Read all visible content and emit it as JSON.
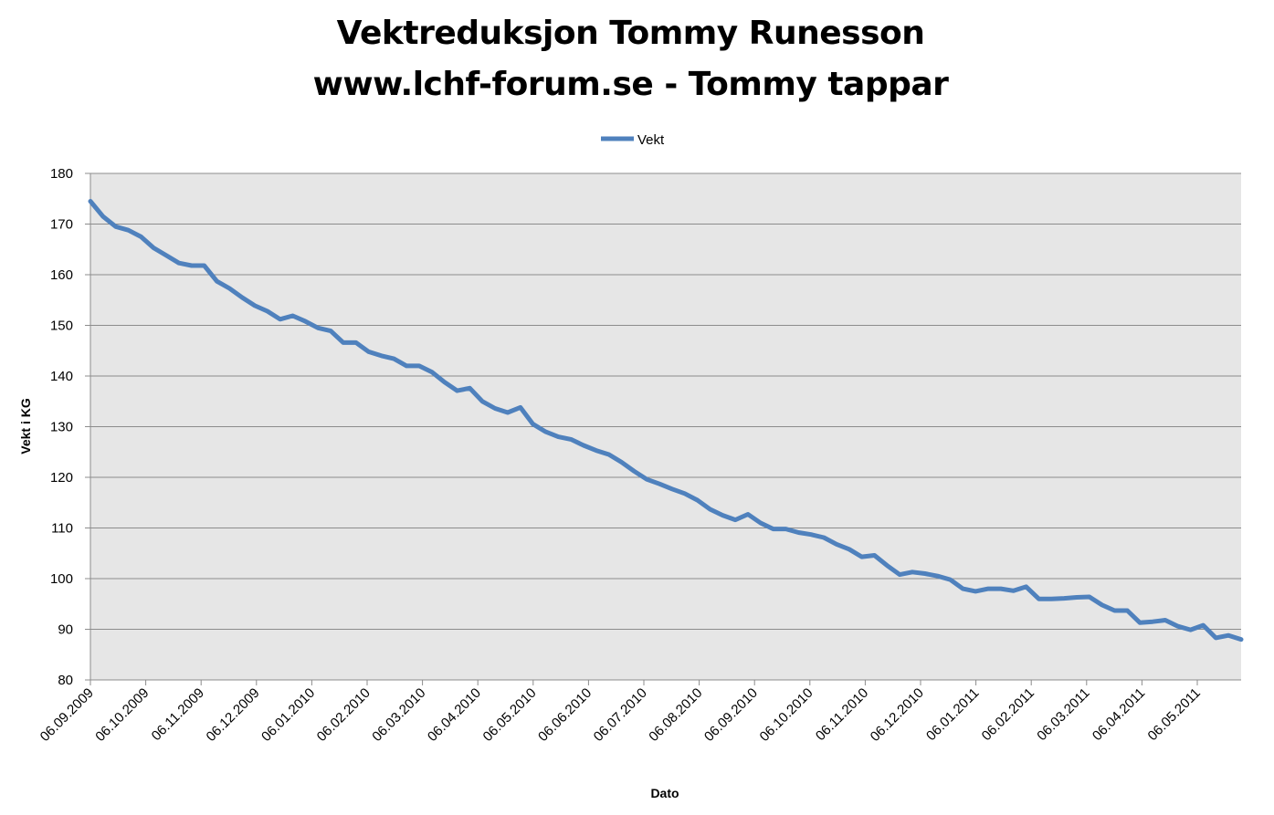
{
  "chart_data": {
    "type": "line",
    "title": "Vektreduksjon Tommy Runesson",
    "subtitle": "www.lchf-forum.se - Tommy tappar",
    "xlabel": "Dato",
    "ylabel": "Vekt i KG",
    "ylim": [
      80,
      180
    ],
    "yticks": [
      80,
      90,
      100,
      110,
      120,
      130,
      140,
      150,
      160,
      170,
      180
    ],
    "xticks": [
      "06.09.2009",
      "06.10.2009",
      "06.11.2009",
      "06.12.2009",
      "06.01.2010",
      "06.02.2010",
      "06.03.2010",
      "06.04.2010",
      "06.05.2010",
      "06.06.2010",
      "06.07.2010",
      "06.08.2010",
      "06.09.2010",
      "06.10.2010",
      "06.11.2010",
      "06.12.2010",
      "06.01.2011",
      "06.02.2011",
      "06.03.2011",
      "06.04.2011",
      "06.05.2011"
    ],
    "grid": true,
    "legend_position": "top",
    "series": [
      {
        "name": "Vekt",
        "color": "#4F81BD",
        "values": [
          174.5,
          171.5,
          169.5,
          168.8,
          167.5,
          165.3,
          163.8,
          162.3,
          161.8,
          161.8,
          158.7,
          157.3,
          155.5,
          153.9,
          152.8,
          151.2,
          151.9,
          150.8,
          149.5,
          148.9,
          146.6,
          146.6,
          144.8,
          144.0,
          143.4,
          142.0,
          142.0,
          140.8,
          138.8,
          137.1,
          137.6,
          135.0,
          133.6,
          132.8,
          133.8,
          130.5,
          129.0,
          128.0,
          127.5,
          126.3,
          125.3,
          124.5,
          123.0,
          121.2,
          119.6,
          118.7,
          117.7,
          116.8,
          115.5,
          113.7,
          112.5,
          111.6,
          112.7,
          111.0,
          109.8,
          109.8,
          109.1,
          108.7,
          108.1,
          106.8,
          105.8,
          104.3,
          104.6,
          102.6,
          100.8,
          101.3,
          101.0,
          100.5,
          99.8,
          98.0,
          97.5,
          98.0,
          98.0,
          97.6,
          98.4,
          96.0,
          96.0,
          96.1,
          96.3,
          96.4,
          94.8,
          93.7,
          93.7,
          91.3,
          91.5,
          91.8,
          90.6,
          89.9,
          90.8,
          88.3,
          88.8,
          88.0
        ]
      }
    ]
  }
}
